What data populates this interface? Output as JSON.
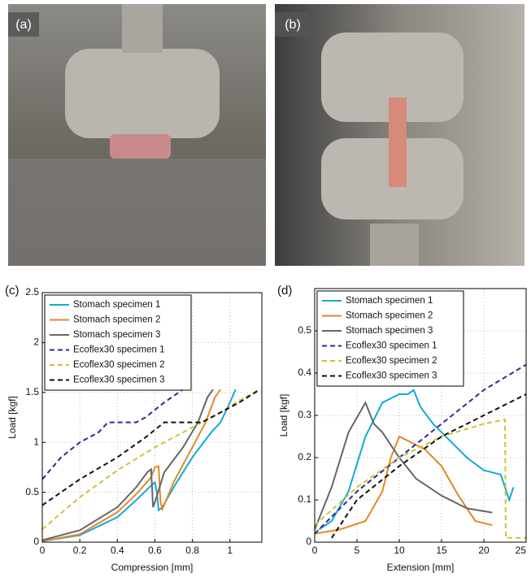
{
  "photos": [
    "(a)",
    "(b)"
  ],
  "chart_data": [
    {
      "type": "line",
      "label": "(c)",
      "x_label": "Compression [mm]",
      "y_label": "Load [kgf]",
      "xlim": [
        0,
        1.17
      ],
      "ylim": [
        0,
        2.5
      ],
      "xticks": [
        0,
        0.2,
        0.4,
        0.6,
        0.8,
        1
      ],
      "yticks": [
        0,
        0.5,
        1,
        1.5,
        2,
        2.5
      ],
      "grid": true,
      "legend": "upper left",
      "series": [
        {
          "name": "Stomach specimen 1",
          "color": "#14a9d6",
          "dashed": false,
          "x": [
            0,
            0.2,
            0.4,
            0.5,
            0.57,
            0.6,
            0.61,
            0.62,
            0.64,
            0.7,
            0.8,
            0.9,
            0.95,
            1.0,
            1.03
          ],
          "y": [
            0.01,
            0.07,
            0.25,
            0.42,
            0.55,
            0.6,
            0.5,
            0.32,
            0.35,
            0.55,
            0.85,
            1.1,
            1.2,
            1.4,
            1.53
          ]
        },
        {
          "name": "Stomach specimen 2",
          "color": "#e08a25",
          "dashed": false,
          "x": [
            0,
            0.2,
            0.4,
            0.5,
            0.58,
            0.6,
            0.62,
            0.63,
            0.64,
            0.7,
            0.8,
            0.87,
            0.92,
            0.95
          ],
          "y": [
            0.01,
            0.08,
            0.3,
            0.48,
            0.65,
            0.75,
            0.76,
            0.4,
            0.33,
            0.6,
            0.95,
            1.2,
            1.45,
            1.53
          ]
        },
        {
          "name": "Stomach specimen 3",
          "color": "#666666",
          "dashed": false,
          "x": [
            0,
            0.2,
            0.4,
            0.5,
            0.56,
            0.58,
            0.59,
            0.6,
            0.65,
            0.75,
            0.83,
            0.88,
            0.91
          ],
          "y": [
            0.02,
            0.12,
            0.35,
            0.55,
            0.7,
            0.73,
            0.35,
            0.4,
            0.7,
            0.95,
            1.2,
            1.45,
            1.53
          ]
        },
        {
          "name": "Ecoflex30 specimen 1",
          "color": "#2a2a9a",
          "dashed": true,
          "x": [
            0,
            0.1,
            0.2,
            0.3,
            0.35,
            0.5,
            0.55,
            0.65,
            0.75
          ],
          "y": [
            0.63,
            0.85,
            1.0,
            1.1,
            1.2,
            1.2,
            1.25,
            1.4,
            1.53
          ]
        },
        {
          "name": "Ecoflex30 specimen 2",
          "color": "#d1c234",
          "dashed": true,
          "x": [
            0,
            0.2,
            0.4,
            0.6,
            0.8,
            0.95,
            1.05,
            1.16
          ],
          "y": [
            0.13,
            0.45,
            0.72,
            0.95,
            1.15,
            1.3,
            1.42,
            1.53
          ]
        },
        {
          "name": "Ecoflex30 specimen 3",
          "color": "#111111",
          "dashed": true,
          "x": [
            0,
            0.2,
            0.4,
            0.55,
            0.65,
            0.85,
            0.95,
            1.05,
            1.16
          ],
          "y": [
            0.37,
            0.63,
            0.85,
            1.05,
            1.2,
            1.2,
            1.3,
            1.4,
            1.53
          ]
        }
      ]
    },
    {
      "type": "line",
      "label": "(d)",
      "x_label": "Extension [mm]",
      "y_label": "Load [kgf]",
      "xlim": [
        0,
        25
      ],
      "ylim": [
        0,
        0.6
      ],
      "xticks": [
        0,
        5,
        10,
        15,
        20,
        25
      ],
      "yticks": [
        0,
        0.1,
        0.2,
        0.3,
        0.4,
        0.5
      ],
      "grid": true,
      "legend": "upper left",
      "series": [
        {
          "name": "Stomach specimen 1",
          "color": "#14a9d6",
          "dashed": false,
          "x": [
            0.5,
            2,
            4,
            6,
            8,
            10,
            11,
            11.7,
            12.5,
            14,
            16,
            18,
            20,
            22,
            23,
            23.5
          ],
          "y": [
            0.03,
            0.05,
            0.12,
            0.25,
            0.33,
            0.35,
            0.35,
            0.36,
            0.32,
            0.28,
            0.24,
            0.2,
            0.17,
            0.16,
            0.1,
            0.13
          ]
        },
        {
          "name": "Stomach specimen 2",
          "color": "#e08a25",
          "dashed": false,
          "x": [
            0,
            3,
            6,
            8,
            9,
            10,
            11,
            13,
            15,
            17,
            19,
            21
          ],
          "y": [
            0.02,
            0.03,
            0.05,
            0.12,
            0.2,
            0.25,
            0.24,
            0.22,
            0.18,
            0.11,
            0.05,
            0.04
          ]
        },
        {
          "name": "Stomach specimen 3",
          "color": "#666666",
          "dashed": false,
          "x": [
            0,
            2,
            4,
            6,
            7,
            8,
            10,
            12,
            15,
            18,
            21
          ],
          "y": [
            0.03,
            0.13,
            0.26,
            0.33,
            0.28,
            0.26,
            0.2,
            0.15,
            0.11,
            0.08,
            0.07
          ]
        },
        {
          "name": "Ecoflex30 specimen 1",
          "color": "#2a2a9a",
          "dashed": true,
          "x": [
            0,
            5,
            10,
            15,
            20,
            25
          ],
          "y": [
            0.02,
            0.12,
            0.2,
            0.28,
            0.36,
            0.42
          ]
        },
        {
          "name": "Ecoflex30 specimen 2",
          "color": "#d1c234",
          "dashed": true,
          "x": [
            0,
            5,
            10,
            15,
            20,
            22.5,
            22.6,
            25
          ],
          "y": [
            0.04,
            0.13,
            0.2,
            0.25,
            0.28,
            0.29,
            0.01,
            0.01
          ]
        },
        {
          "name": "Ecoflex30 specimen 3",
          "color": "#111111",
          "dashed": true,
          "x": [
            2,
            5,
            10,
            15,
            20,
            25
          ],
          "y": [
            0.01,
            0.1,
            0.18,
            0.25,
            0.3,
            0.35
          ]
        }
      ]
    }
  ]
}
